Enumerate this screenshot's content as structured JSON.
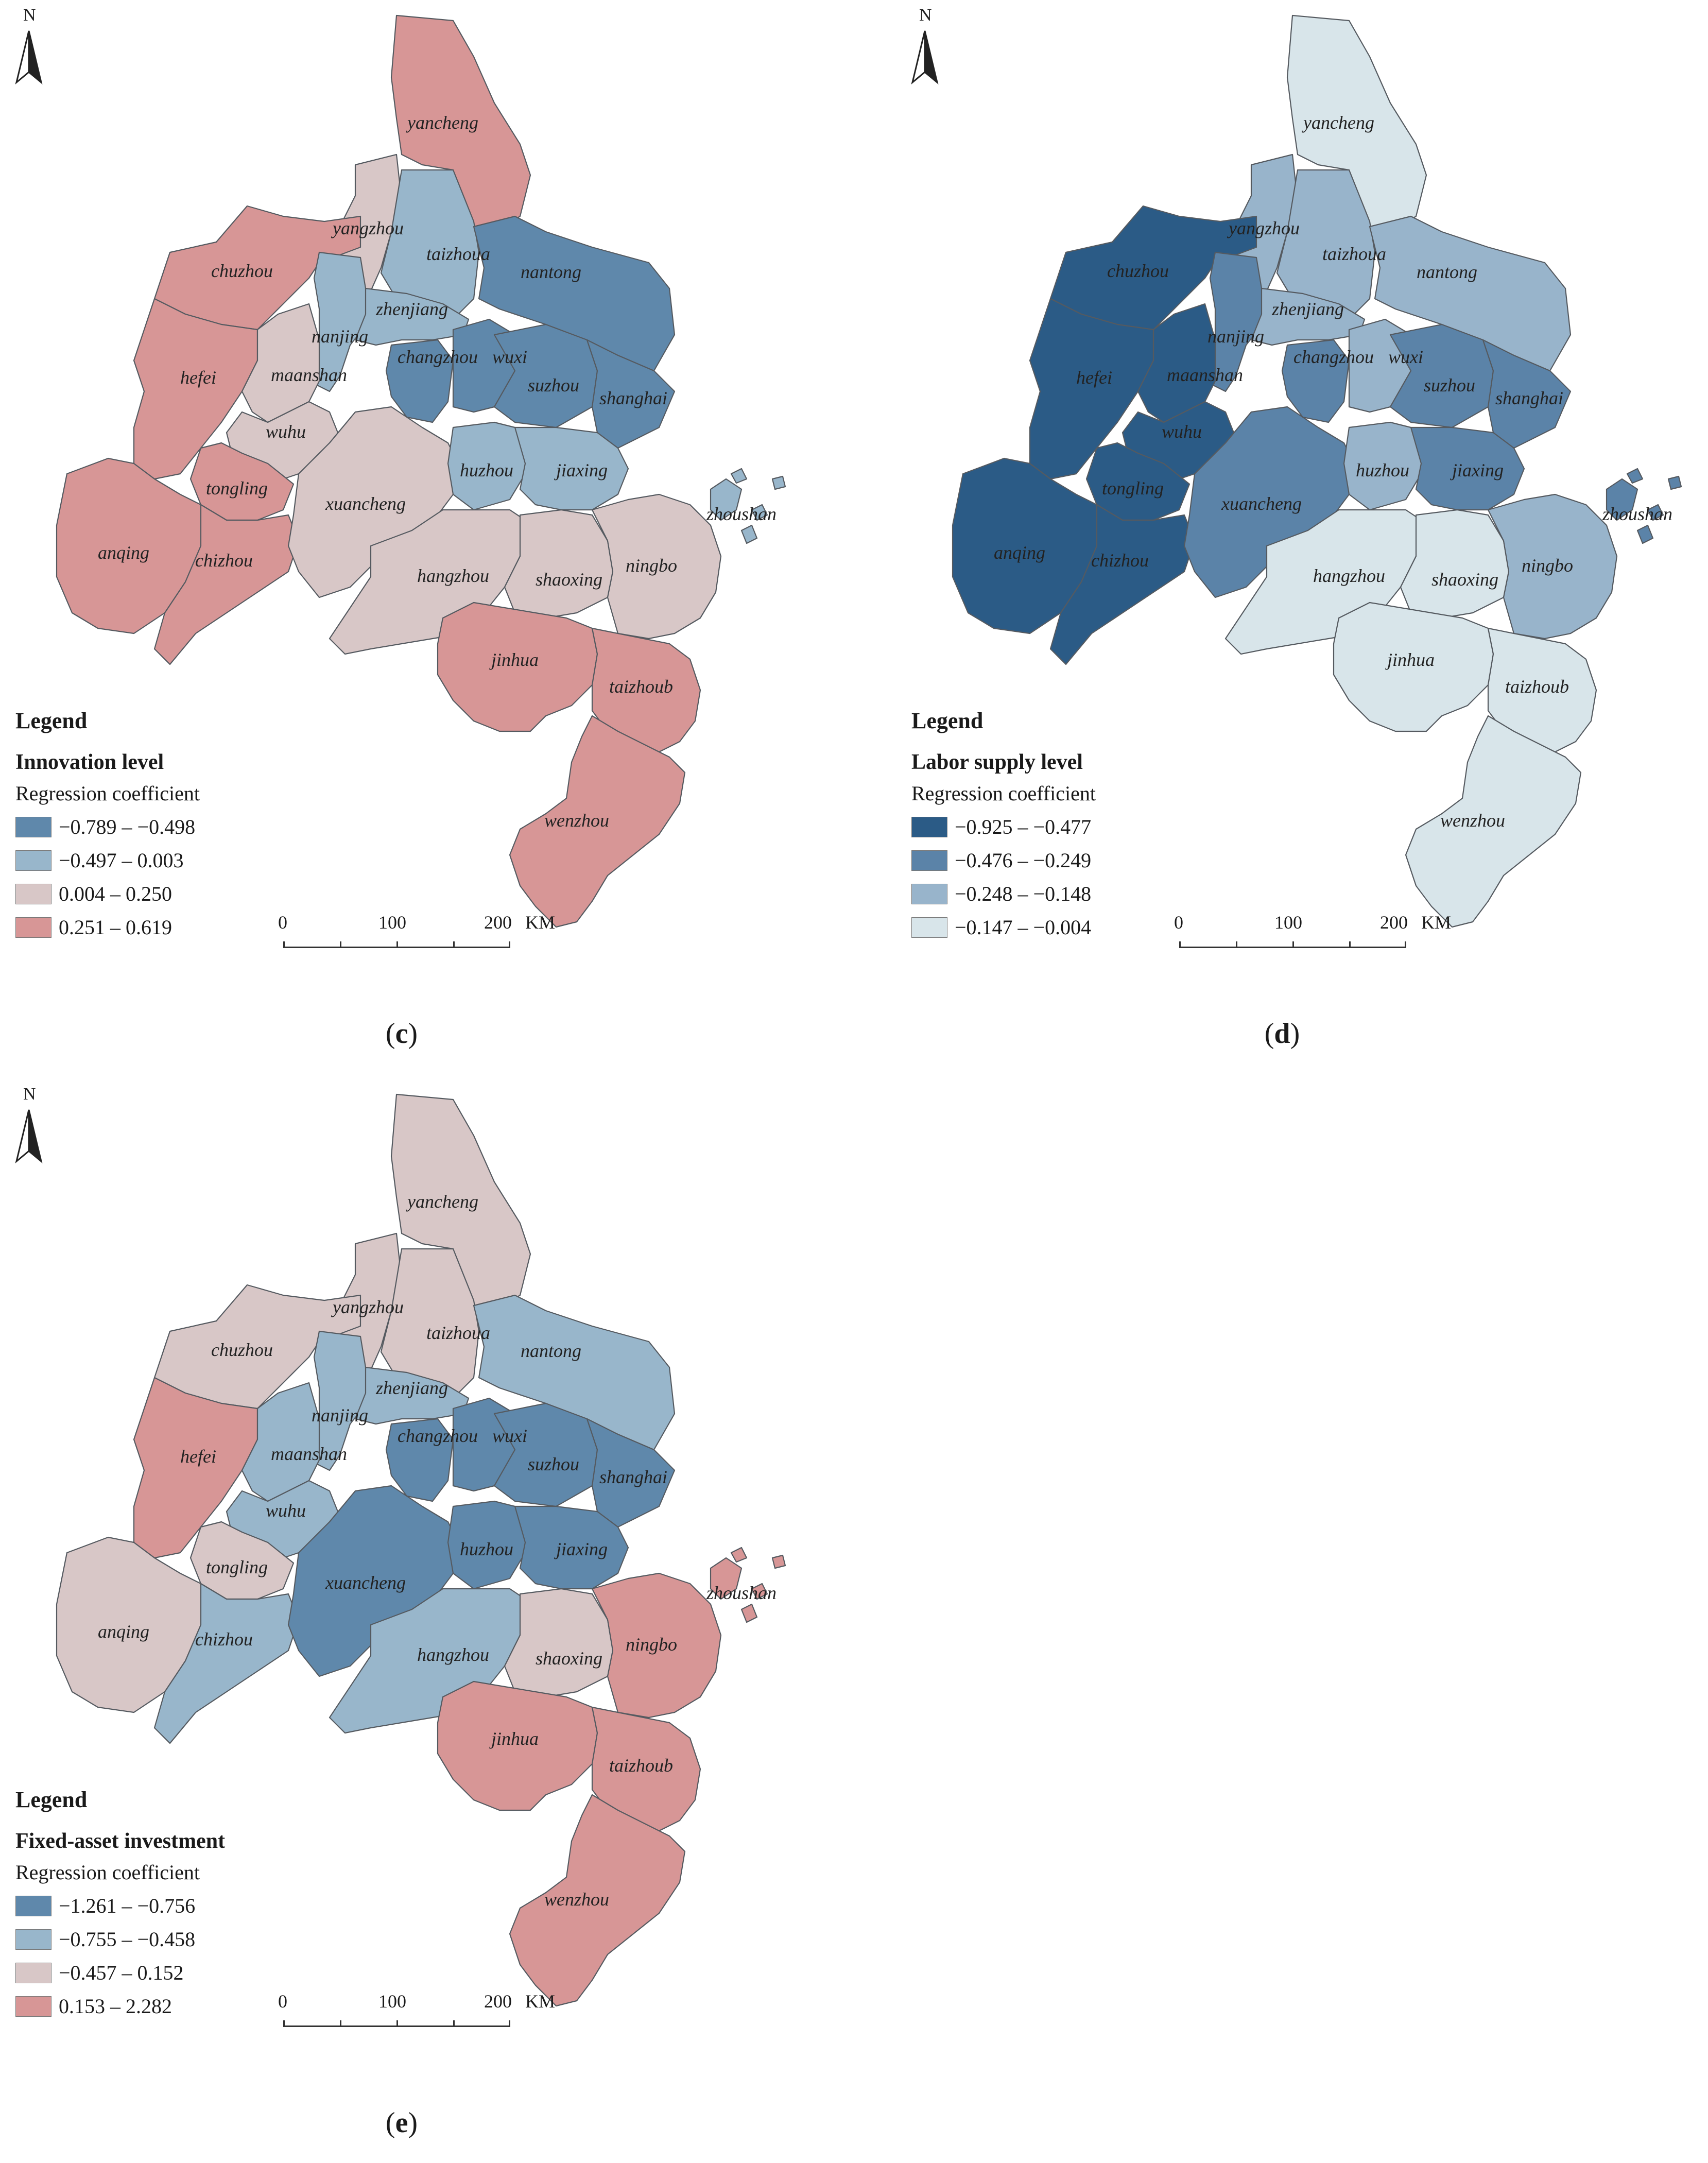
{
  "colors": {
    "cat1_c": "#5f88ab",
    "cat2_c": "#98b6cb",
    "cat3_c": "#d8c7c7",
    "cat4_c": "#d79696",
    "cat1_d": "#2b5b86",
    "cat2_d": "#5b83a8",
    "cat3_d": "#98b4cb",
    "cat4_d": "#d8e5ea",
    "cat1_e": "#5f88ab",
    "cat2_e": "#98b6cb",
    "cat3_e": "#d8c7c7",
    "cat4_e": "#d79696"
  },
  "north_label": "N",
  "scale": {
    "ticks": [
      "0",
      "100",
      "200"
    ],
    "unit": "KM"
  },
  "panels": [
    {
      "key": "c",
      "caption_label": "c",
      "legend": {
        "title": "Legend",
        "variable": "Innovation level",
        "caption": "Regression coefficient",
        "classes": [
          "−0.789 – −0.498",
          "−0.497 – 0.003",
          "0.004 – 0.250",
          "0.251 – 0.619"
        ]
      },
      "regions": {
        "yancheng": 4,
        "yangzhou": 3,
        "taizhoua": 2,
        "nantong": 1,
        "nanjing": 2,
        "zhenjiang": 2,
        "changzhou": 1,
        "wuxi": 1,
        "suzhou": 1,
        "shanghai": 1,
        "chuzhou": 4,
        "hefei": 4,
        "maanshan": 3,
        "wuhu": 3,
        "tongling": 4,
        "anqing": 4,
        "chizhou": 4,
        "xuancheng": 3,
        "huzhou": 2,
        "jiaxing": 2,
        "hangzhou": 3,
        "shaoxing": 3,
        "ningbo": 3,
        "zhoushan": 2,
        "jinhua": 4,
        "taizhoub": 4,
        "wenzhou": 4
      }
    },
    {
      "key": "d",
      "caption_label": "d",
      "legend": {
        "title": "Legend",
        "variable": "Labor supply level",
        "caption": "Regression coefficient",
        "classes": [
          "−0.925 – −0.477",
          "−0.476 – −0.249",
          "−0.248 – −0.148",
          "−0.147 – −0.004"
        ]
      },
      "regions": {
        "yancheng": 4,
        "yangzhou": 3,
        "taizhoua": 3,
        "nantong": 3,
        "nanjing": 2,
        "zhenjiang": 3,
        "changzhou": 2,
        "wuxi": 3,
        "suzhou": 2,
        "shanghai": 2,
        "chuzhou": 1,
        "hefei": 1,
        "maanshan": 1,
        "wuhu": 1,
        "tongling": 1,
        "anqing": 1,
        "chizhou": 1,
        "xuancheng": 2,
        "huzhou": 3,
        "jiaxing": 2,
        "hangzhou": 4,
        "shaoxing": 4,
        "ningbo": 3,
        "zhoushan": 2,
        "jinhua": 4,
        "taizhoub": 4,
        "wenzhou": 4
      }
    },
    {
      "key": "e",
      "caption_label": "e",
      "legend": {
        "title": "Legend",
        "variable": "Fixed-asset investment",
        "caption": "Regression coefficient",
        "classes": [
          "−1.261 – −0.756",
          "−0.755 – −0.458",
          "−0.457 – 0.152",
          "0.153 – 2.282"
        ]
      },
      "regions": {
        "yancheng": 3,
        "yangzhou": 3,
        "taizhoua": 3,
        "nantong": 2,
        "nanjing": 2,
        "zhenjiang": 2,
        "changzhou": 1,
        "wuxi": 1,
        "suzhou": 1,
        "shanghai": 1,
        "chuzhou": 3,
        "hefei": 4,
        "maanshan": 2,
        "wuhu": 2,
        "tongling": 3,
        "anqing": 3,
        "chizhou": 2,
        "xuancheng": 1,
        "huzhou": 1,
        "jiaxing": 1,
        "hangzhou": 2,
        "shaoxing": 3,
        "ningbo": 4,
        "zhoushan": 4,
        "jinhua": 4,
        "taizhoub": 4,
        "wenzhou": 4
      }
    }
  ]
}
